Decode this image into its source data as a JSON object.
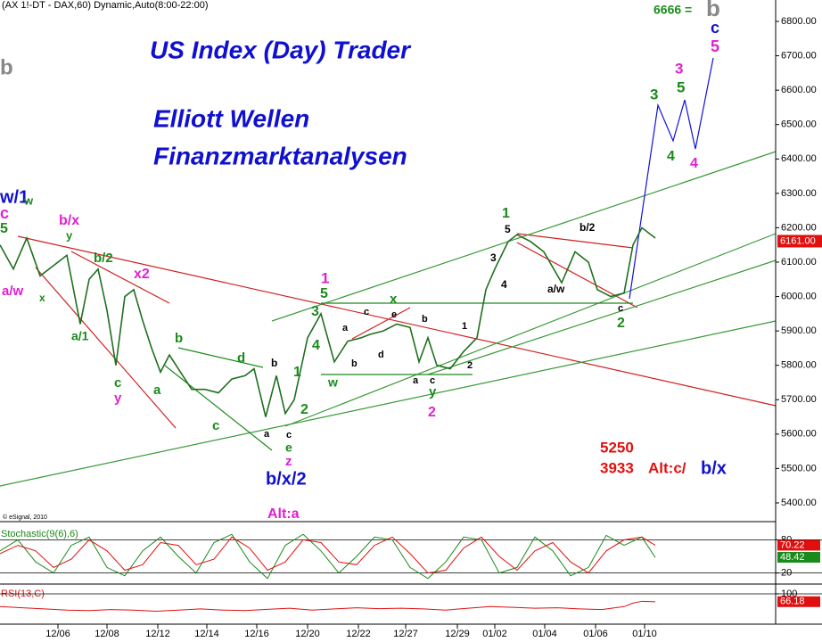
{
  "chart_data": [
    {
      "type": "line",
      "header": "(AX 1!-DT - DAX,60) Dynamic,Auto(8:00-22:00)",
      "title": "US Index (Day) Trader",
      "subtitle": [
        "Elliott Wellen",
        "Finanzmarktanalysen"
      ],
      "credit": "© eSignal, 2010",
      "xlim": [
        0,
        870
      ],
      "ylim": [
        5390,
        6830
      ],
      "xticks": [
        {
          "value": 65,
          "label": "12/06"
        },
        {
          "value": 120,
          "label": "12/08"
        },
        {
          "value": 177,
          "label": "12/12"
        },
        {
          "value": 232,
          "label": "12/14"
        },
        {
          "value": 288,
          "label": "12/16"
        },
        {
          "value": 345,
          "label": "12/20"
        },
        {
          "value": 402,
          "label": "12/22"
        },
        {
          "value": 455,
          "label": "12/27"
        },
        {
          "value": 513,
          "label": "12/29"
        },
        {
          "value": 555,
          "label": "01/02"
        },
        {
          "value": 611,
          "label": "01/04"
        },
        {
          "value": 668,
          "label": "01/06"
        },
        {
          "value": 723,
          "label": "01/10"
        }
      ],
      "yticks": [
        {
          "value": 5400,
          "label": "5400.00"
        },
        {
          "value": 5500,
          "label": "5500.00"
        },
        {
          "value": 5600,
          "label": "5600.00"
        },
        {
          "value": 5700,
          "label": "5700.00"
        },
        {
          "value": 5800,
          "label": "5800.00"
        },
        {
          "value": 5900,
          "label": "5900.00"
        },
        {
          "value": 6000,
          "label": "6000.00"
        },
        {
          "value": 6100,
          "label": "6100.00"
        },
        {
          "value": 6200,
          "label": "6200.00"
        },
        {
          "value": 6300,
          "label": "6300.00"
        },
        {
          "value": 6400,
          "label": "6400.00"
        },
        {
          "value": 6500,
          "label": "6500.00"
        },
        {
          "value": 6600,
          "label": "6600.00"
        },
        {
          "value": 6700,
          "label": "6700.00"
        },
        {
          "value": 6800,
          "label": "6800.00"
        }
      ],
      "last_value": 6161,
      "last_value_label": "6161.00",
      "series": [
        {
          "name": "DAX",
          "color": "#1f6f1f",
          "x": [
            0,
            15,
            30,
            45,
            60,
            75,
            90,
            100,
            110,
            120,
            130,
            140,
            150,
            160,
            170,
            180,
            190,
            200,
            215,
            230,
            245,
            260,
            275,
            285,
            298,
            310,
            320,
            330,
            345,
            360,
            375,
            390,
            405,
            415,
            430,
            445,
            460,
            470,
            480,
            490,
            505,
            520,
            535,
            545,
            555,
            570,
            580,
            595,
            610,
            630,
            645,
            660,
            670,
            685,
            700,
            710,
            720,
            735
          ],
          "values": [
            6150,
            6080,
            6170,
            6060,
            6090,
            6120,
            5920,
            6050,
            6080,
            5960,
            5800,
            6000,
            6020,
            5930,
            5850,
            5780,
            5830,
            5790,
            5730,
            5730,
            5720,
            5760,
            5770,
            5790,
            5650,
            5770,
            5660,
            5700,
            5880,
            5950,
            5810,
            5870,
            5880,
            5890,
            5900,
            5920,
            5910,
            5810,
            5880,
            5800,
            5790,
            5840,
            5880,
            6020,
            6080,
            6160,
            6180,
            6160,
            6130,
            6040,
            6130,
            6100,
            6020,
            6000,
            6010,
            6150,
            6200,
            6170
          ]
        }
      ],
      "annotations": [
        {
          "text": "6666 =",
          "color": "#1a8a1a"
        },
        {
          "text": "b",
          "color": "#888888"
        },
        {
          "text": "c",
          "color": "#1010d0"
        },
        {
          "text": "5",
          "color": "#e020d0"
        },
        {
          "text": "b",
          "color": "#888888"
        },
        {
          "text": "w/1",
          "color": "#1010d0"
        },
        {
          "text": "c",
          "color": "#e020d0"
        },
        {
          "text": "5",
          "color": "#1a8a1a"
        },
        {
          "text": "w",
          "color": "#1a8a1a"
        },
        {
          "text": "b/x",
          "color": "#e020d0"
        },
        {
          "text": "y",
          "color": "#1a8a1a"
        },
        {
          "text": "a/w",
          "color": "#e020d0"
        },
        {
          "text": "x",
          "color": "#1a8a1a"
        },
        {
          "text": "b/2",
          "color": "#1a8a1a"
        },
        {
          "text": "x2",
          "color": "#e020d0"
        },
        {
          "text": "a/1",
          "color": "#1a8a1a"
        },
        {
          "text": "c",
          "color": "#1a8a1a"
        },
        {
          "text": "y",
          "color": "#e020d0"
        },
        {
          "text": "a",
          "color": "#1a8a1a"
        },
        {
          "text": "b",
          "color": "#1a8a1a"
        },
        {
          "text": "c",
          "color": "#1a8a1a"
        },
        {
          "text": "d",
          "color": "#1a8a1a"
        },
        {
          "text": "b",
          "color": "#000000"
        },
        {
          "text": "a",
          "color": "#000000"
        },
        {
          "text": "c",
          "color": "#000000"
        },
        {
          "text": "e",
          "color": "#1a8a1a"
        },
        {
          "text": "z",
          "color": "#e020d0"
        },
        {
          "text": "b/x/2",
          "color": "#1010d0"
        },
        {
          "text": "1",
          "color": "#1a8a1a"
        },
        {
          "text": "2",
          "color": "#1a8a1a"
        },
        {
          "text": "3",
          "color": "#1a8a1a"
        },
        {
          "text": "4",
          "color": "#1a8a1a"
        },
        {
          "text": "1",
          "color": "#e020d0"
        },
        {
          "text": "5",
          "color": "#1a8a1a"
        },
        {
          "text": "w",
          "color": "#1a8a1a"
        },
        {
          "text": "a",
          "color": "#000000"
        },
        {
          "text": "b",
          "color": "#000000"
        },
        {
          "text": "c",
          "color": "#000000"
        },
        {
          "text": "d",
          "color": "#000000"
        },
        {
          "text": "e",
          "color": "#000000"
        },
        {
          "text": "x",
          "color": "#1a8a1a"
        },
        {
          "text": "b",
          "color": "#000000"
        },
        {
          "text": "a",
          "color": "#000000"
        },
        {
          "text": "c",
          "color": "#000000"
        },
        {
          "text": "y",
          "color": "#1a8a1a"
        },
        {
          "text": "2",
          "color": "#e020d0"
        },
        {
          "text": "1",
          "color": "#000000"
        },
        {
          "text": "2",
          "color": "#000000"
        },
        {
          "text": "3",
          "color": "#000000"
        },
        {
          "text": "4",
          "color": "#000000"
        },
        {
          "text": "5",
          "color": "#000000"
        },
        {
          "text": "1",
          "color": "#1a8a1a"
        },
        {
          "text": "b/2",
          "color": "#000000"
        },
        {
          "text": "a/w",
          "color": "#000000"
        },
        {
          "text": "c",
          "color": "#000000"
        },
        {
          "text": "2",
          "color": "#1a8a1a"
        },
        {
          "text": "3",
          "color": "#1a8a1a"
        },
        {
          "text": "3",
          "color": "#e020d0"
        },
        {
          "text": "5",
          "color": "#1a8a1a"
        },
        {
          "text": "4",
          "color": "#1a8a1a"
        },
        {
          "text": "4",
          "color": "#e020d0"
        },
        {
          "text": "5250",
          "color": "#e01010"
        },
        {
          "text": "3933",
          "color": "#e01010"
        },
        {
          "text": "Alt:c/",
          "color": "#e01010"
        },
        {
          "text": "b/x",
          "color": "#1010d0"
        },
        {
          "text": "Alt:a",
          "color": "#e020d0"
        }
      ]
    },
    {
      "type": "line",
      "title": "Stochastic(9(6),6)",
      "xlim": [
        0,
        870
      ],
      "ylim": [
        0,
        100
      ],
      "yticks": [
        20,
        80
      ],
      "value_label_values": [
        70.22,
        48.42
      ],
      "series": [
        {
          "name": "%K",
          "color": "#1a8a1a",
          "x": [
            0,
            20,
            40,
            60,
            80,
            100,
            120,
            140,
            160,
            180,
            200,
            220,
            240,
            260,
            280,
            300,
            320,
            340,
            360,
            380,
            400,
            420,
            440,
            460,
            480,
            500,
            520,
            540,
            560,
            580,
            600,
            620,
            640,
            660,
            680,
            700,
            720,
            735
          ],
          "values": [
            60,
            80,
            40,
            20,
            70,
            85,
            30,
            15,
            60,
            85,
            50,
            20,
            75,
            90,
            40,
            10,
            70,
            90,
            60,
            20,
            50,
            85,
            80,
            30,
            10,
            40,
            85,
            80,
            20,
            30,
            85,
            60,
            15,
            30,
            88,
            70,
            85,
            48
          ]
        },
        {
          "name": "%D",
          "color": "#e01010",
          "x": [
            0,
            20,
            40,
            60,
            80,
            100,
            120,
            140,
            160,
            180,
            200,
            220,
            240,
            260,
            280,
            300,
            320,
            340,
            360,
            380,
            400,
            420,
            440,
            460,
            480,
            500,
            520,
            540,
            560,
            580,
            600,
            620,
            640,
            660,
            680,
            700,
            720,
            735
          ],
          "values": [
            55,
            70,
            60,
            30,
            45,
            80,
            60,
            25,
            35,
            75,
            70,
            35,
            45,
            85,
            65,
            25,
            40,
            80,
            75,
            40,
            35,
            70,
            85,
            55,
            20,
            25,
            65,
            85,
            50,
            25,
            60,
            75,
            40,
            20,
            60,
            80,
            85,
            70
          ]
        }
      ]
    },
    {
      "type": "line",
      "title": "RSI(13,C)",
      "xlim": [
        0,
        870
      ],
      "ylim": [
        0,
        120
      ],
      "yticks": [
        100
      ],
      "value_label_values": [
        66.18
      ],
      "series": [
        {
          "name": "RSI",
          "color": "#e01010",
          "x": [
            0,
            25,
            50,
            75,
            100,
            125,
            150,
            175,
            200,
            225,
            250,
            275,
            300,
            325,
            350,
            375,
            400,
            425,
            450,
            475,
            500,
            525,
            550,
            575,
            600,
            625,
            650,
            675,
            700,
            710,
            720,
            735
          ],
          "values": [
            45,
            40,
            35,
            30,
            28,
            32,
            30,
            25,
            30,
            35,
            30,
            28,
            33,
            38,
            30,
            35,
            40,
            36,
            38,
            35,
            30,
            38,
            45,
            42,
            38,
            40,
            35,
            32,
            45,
            60,
            68,
            66
          ]
        }
      ]
    }
  ]
}
